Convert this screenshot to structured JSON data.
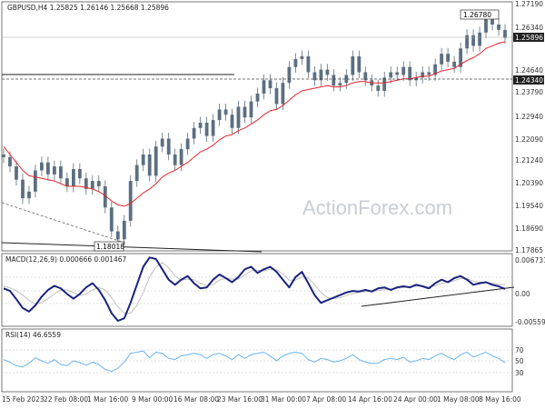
{
  "chart_data": [
    {
      "type": "candlestick",
      "title": "GBPUSD,H4",
      "ohlc_text": "1.25825 1.26146 1.25668 1.25896",
      "y_ticks": [
        "1.27190",
        "1.26340",
        "1.25896",
        "1.24640",
        "1.24340",
        "1.23790",
        "1.22940",
        "1.22090",
        "1.21240",
        "1.20390",
        "1.19540",
        "1.18690",
        "1.17865"
      ],
      "current_price": "1.25896",
      "level_label": "1.24340",
      "high_annotation": "1.26780",
      "low_annotation": "1.18018",
      "ylim": [
        1.17865,
        1.2719
      ],
      "series": [
        {
          "name": "GBPUSD close",
          "values": [
            1.214,
            1.2105,
            1.2055,
            1.1985,
            1.201,
            1.209,
            1.212,
            1.2075,
            1.2105,
            1.206,
            1.203,
            1.2095,
            1.206,
            1.202,
            1.205,
            1.203,
            1.195,
            1.186,
            1.183,
            1.19,
            1.205,
            1.211,
            1.215,
            1.207,
            1.218,
            1.221,
            1.215,
            1.211,
            1.217,
            1.221,
            1.225,
            1.227,
            1.222,
            1.228,
            1.232,
            1.23,
            1.225,
            1.233,
            1.229,
            1.235,
            1.238,
            1.243,
            1.24,
            1.234,
            1.242,
            1.248,
            1.251,
            1.252,
            1.246,
            1.243,
            1.247,
            1.245,
            1.241,
            1.242,
            1.245,
            1.252,
            1.246,
            1.243,
            1.241,
            1.239,
            1.244,
            1.246,
            1.245,
            1.248,
            1.243,
            1.244,
            1.246,
            1.245,
            1.249,
            1.253,
            1.25,
            1.248,
            1.255,
            1.26,
            1.256,
            1.261,
            1.266,
            1.264,
            1.262,
            1.259
          ]
        },
        {
          "name": "Moving average",
          "values": [
            1.218,
            1.215,
            1.212,
            1.209,
            1.207,
            1.2065,
            1.206,
            1.2055,
            1.205,
            1.204,
            1.203,
            1.203,
            1.203,
            1.2025,
            1.202,
            1.201,
            1.1995,
            1.1975,
            1.196,
            1.1955,
            1.1965,
            1.1985,
            1.2005,
            1.202,
            1.204,
            1.2065,
            1.208,
            1.209,
            1.2105,
            1.212,
            1.214,
            1.216,
            1.217,
            1.2185,
            1.2205,
            1.222,
            1.2225,
            1.224,
            1.225,
            1.2265,
            1.228,
            1.23,
            1.2315,
            1.232,
            1.2335,
            1.2355,
            1.2375,
            1.239,
            1.2395,
            1.24,
            1.2405,
            1.241,
            1.2405,
            1.2405,
            1.241,
            1.242,
            1.2425,
            1.2425,
            1.242,
            1.242,
            1.242,
            1.2425,
            1.243,
            1.2435,
            1.2435,
            1.244,
            1.2445,
            1.2445,
            1.2455,
            1.2465,
            1.247,
            1.2475,
            1.249,
            1.2505,
            1.2515,
            1.253,
            1.255,
            1.256,
            1.257,
            1.2575
          ]
        }
      ]
    },
    {
      "type": "line",
      "title": "MACD(12,26,9) 0.000666 0.001467",
      "y_ticks": [
        "0.006731",
        "0.00",
        "-0.005595"
      ],
      "ylim": [
        -0.0062,
        0.0072
      ],
      "series": [
        {
          "name": "MACD",
          "values": [
            0.0008,
            0.0003,
            -0.0013,
            -0.003,
            -0.0037,
            -0.0025,
            -0.0008,
            0.0005,
            0.0013,
            0.0008,
            -0.0003,
            -0.0012,
            -0.0003,
            0.001,
            0.0018,
            0.0005,
            -0.0015,
            -0.004,
            -0.0055,
            -0.005,
            -0.002,
            0.0015,
            0.005,
            0.0068,
            0.0065,
            0.0045,
            0.0025,
            0.0015,
            0.0025,
            0.0032,
            0.0018,
            0.0008,
            0.001,
            0.0025,
            0.0035,
            0.0028,
            0.002,
            0.003,
            0.0045,
            0.005,
            0.0038,
            0.0045,
            0.005,
            0.004,
            0.0025,
            0.001,
            0.003,
            0.004,
            0.0018,
            -0.0005,
            -0.002,
            -0.0015,
            -0.001,
            -0.0005,
            0.0,
            0.0003,
            0.0002,
            0.0005,
            0.0002,
            0.0008,
            0.001,
            0.0005,
            0.001,
            0.0012,
            0.001,
            0.0015,
            0.0012,
            0.0008,
            0.0018,
            0.0025,
            0.002,
            0.0028,
            0.0032,
            0.0025,
            0.0015,
            0.0018,
            0.002,
            0.0015,
            0.0012,
            0.0007
          ]
        },
        {
          "name": "Signal",
          "values": [
            0.0012,
            0.0009,
            0.0003,
            -0.0005,
            -0.0015,
            -0.0022,
            -0.002,
            -0.0012,
            -0.0003,
            0.0005,
            0.0005,
            0.0,
            -0.0006,
            -0.0003,
            0.0005,
            0.001,
            0.0005,
            -0.001,
            -0.0028,
            -0.004,
            -0.004,
            -0.0025,
            0.0,
            0.003,
            0.005,
            0.0058,
            0.0048,
            0.0032,
            0.0024,
            0.0026,
            0.0025,
            0.0018,
            0.0013,
            0.0016,
            0.0024,
            0.0028,
            0.0026,
            0.0026,
            0.0034,
            0.0042,
            0.0043,
            0.0042,
            0.0045,
            0.0044,
            0.0036,
            0.0024,
            0.0024,
            0.003,
            0.0028,
            0.0015,
            0.0,
            -0.001,
            -0.0012,
            -0.001,
            -0.0006,
            -0.0002,
            0.0,
            0.0002,
            0.0002,
            0.0004,
            0.0006,
            0.0007,
            0.0008,
            0.001,
            0.0011,
            0.0012,
            0.0013,
            0.0011,
            0.0013,
            0.0018,
            0.002,
            0.0023,
            0.0027,
            0.0027,
            0.0022,
            0.002,
            0.002,
            0.0018,
            0.0016,
            0.0015
          ]
        }
      ]
    },
    {
      "type": "line",
      "title": "RSI(14) 46.6559",
      "y_ticks": [
        "70",
        "50",
        "30"
      ],
      "ylim": [
        0,
        100
      ],
      "series": [
        {
          "name": "RSI",
          "values": [
            52,
            48,
            42,
            40,
            46,
            55,
            50,
            46,
            52,
            44,
            42,
            50,
            47,
            43,
            48,
            44,
            36,
            33,
            38,
            48,
            62,
            64,
            66,
            55,
            64,
            62,
            54,
            52,
            58,
            60,
            62,
            60,
            54,
            60,
            62,
            58,
            52,
            60,
            54,
            60,
            62,
            64,
            58,
            50,
            58,
            62,
            64,
            62,
            52,
            48,
            54,
            52,
            48,
            50,
            54,
            60,
            52,
            48,
            46,
            46,
            52,
            54,
            52,
            56,
            48,
            50,
            54,
            52,
            58,
            62,
            56,
            52,
            60,
            64,
            56,
            60,
            64,
            58,
            54,
            47
          ]
        }
      ]
    }
  ],
  "x_axis_labels": [
    "15 Feb 2023",
    "22 Feb 08:00",
    "1 Mar 16:00",
    "9 Mar 00:00",
    "16 Mar 08:00",
    "23 Mar 16:00",
    "31 Mar 00:00",
    "7 Apr 08:00",
    "14 Apr 16:00",
    "24 Apr 00:00",
    "1 May 08:00",
    "8 May 16:00"
  ],
  "watermark": "ActionForex.com",
  "colors": {
    "candle": "#5b6f80",
    "ma": "#e8242c",
    "macd": "#1a237e",
    "signal": "#c0c0c0",
    "rsi": "#6ab4f0"
  }
}
